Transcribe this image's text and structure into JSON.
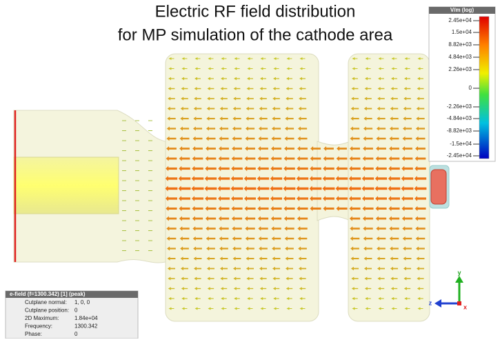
{
  "title": {
    "line1": "Electric RF field distribution",
    "line2": "for MP simulation of the cathode area"
  },
  "legend": {
    "title": "V/m (log)",
    "ticks": [
      "2.45e+04",
      "1.5e+04",
      "8.82e+03",
      "4.84e+03",
      "2.26e+03",
      "0",
      "-2.26e+03",
      "-4.84e+03",
      "-8.82e+03",
      "-1.5e+04",
      "-2.45e+04"
    ]
  },
  "info": {
    "header": "e-field (f=1300.342) [1] (peak)",
    "rows": [
      [
        "Cutplane normal:",
        "1, 0, 0"
      ],
      [
        "Cutplane position:",
        "0"
      ],
      [
        "2D Maximum:",
        "1.84e+04"
      ],
      [
        "Frequency:",
        "1300.342"
      ],
      [
        "Phase:",
        "0"
      ]
    ]
  },
  "axes": {
    "y": "y",
    "z": "z",
    "x": "x"
  }
}
